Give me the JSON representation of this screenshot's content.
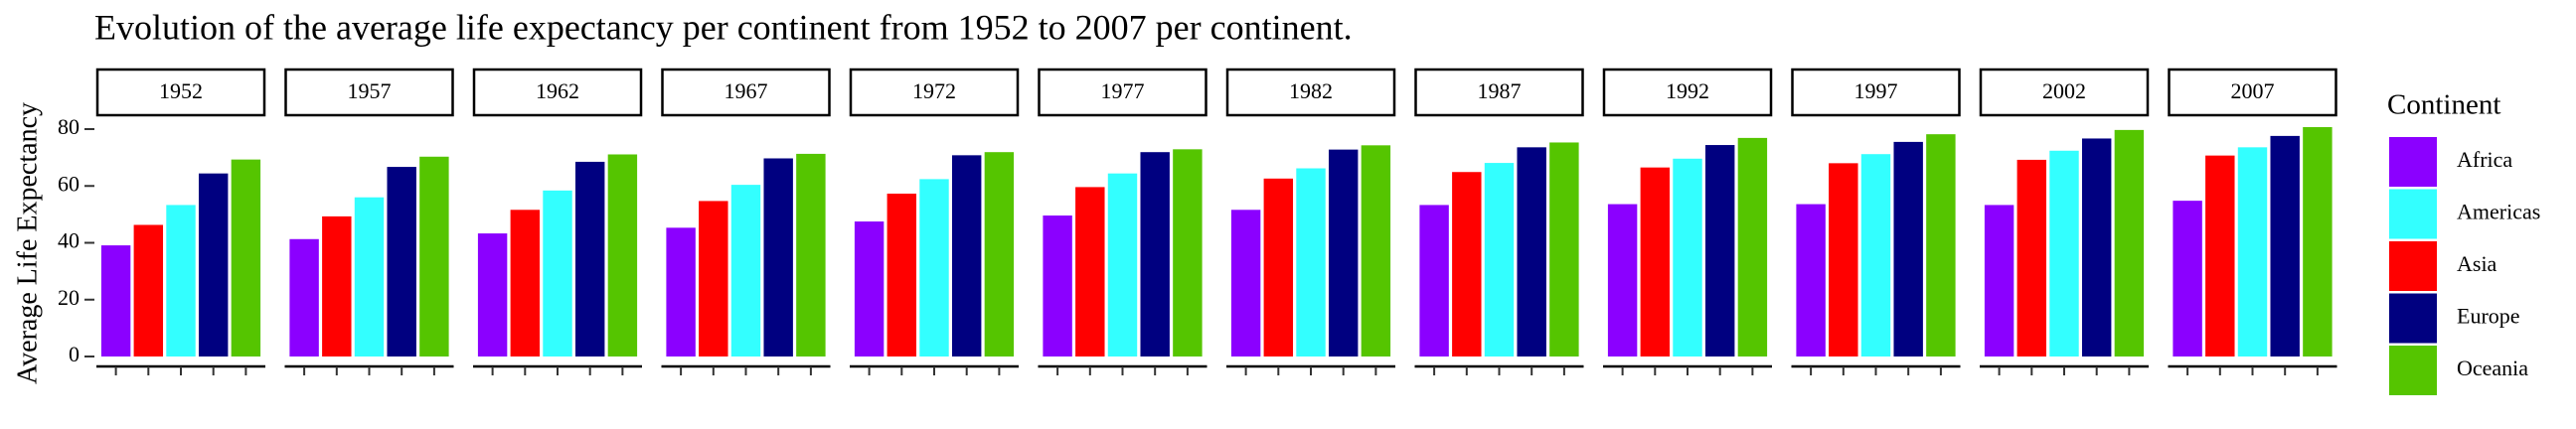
{
  "chart_data": {
    "type": "bar",
    "title": "Evolution of the average life expectancy per continent from 1952 to 2007 per continent.",
    "y_label": "Average Life Expectancy",
    "legend_title": "Continent",
    "facets": [
      "1952",
      "1957",
      "1962",
      "1967",
      "1972",
      "1977",
      "1982",
      "1987",
      "1992",
      "1997",
      "2002",
      "2007"
    ],
    "series": [
      {
        "name": "Africa",
        "color": "#8b00ff",
        "values": [
          39.1,
          41.3,
          43.3,
          45.3,
          47.5,
          49.6,
          51.6,
          53.3,
          53.6,
          53.6,
          53.3,
          54.8
        ]
      },
      {
        "name": "Americas",
        "color": "#33ffff",
        "values": [
          53.3,
          56.0,
          58.4,
          60.4,
          62.4,
          64.4,
          66.2,
          68.1,
          69.6,
          71.2,
          72.4,
          73.6
        ]
      },
      {
        "name": "Asia",
        "color": "#ff0000",
        "values": [
          46.3,
          49.3,
          51.6,
          54.7,
          57.3,
          59.6,
          62.6,
          64.9,
          66.5,
          68.0,
          69.2,
          70.7
        ]
      },
      {
        "name": "Europe",
        "color": "#000080",
        "values": [
          64.4,
          66.7,
          68.5,
          69.7,
          70.8,
          71.9,
          72.8,
          73.6,
          74.4,
          75.5,
          76.7,
          77.6
        ]
      },
      {
        "name": "Oceania",
        "color": "#55c500",
        "values": [
          69.3,
          70.3,
          71.1,
          71.3,
          71.9,
          72.9,
          74.3,
          75.3,
          76.9,
          78.2,
          79.7,
          80.7
        ]
      }
    ],
    "ylim": [
      -3.5,
      83.5
    ],
    "yticks": [
      0,
      20,
      40,
      60,
      80
    ],
    "grid": false,
    "legend": "right"
  }
}
